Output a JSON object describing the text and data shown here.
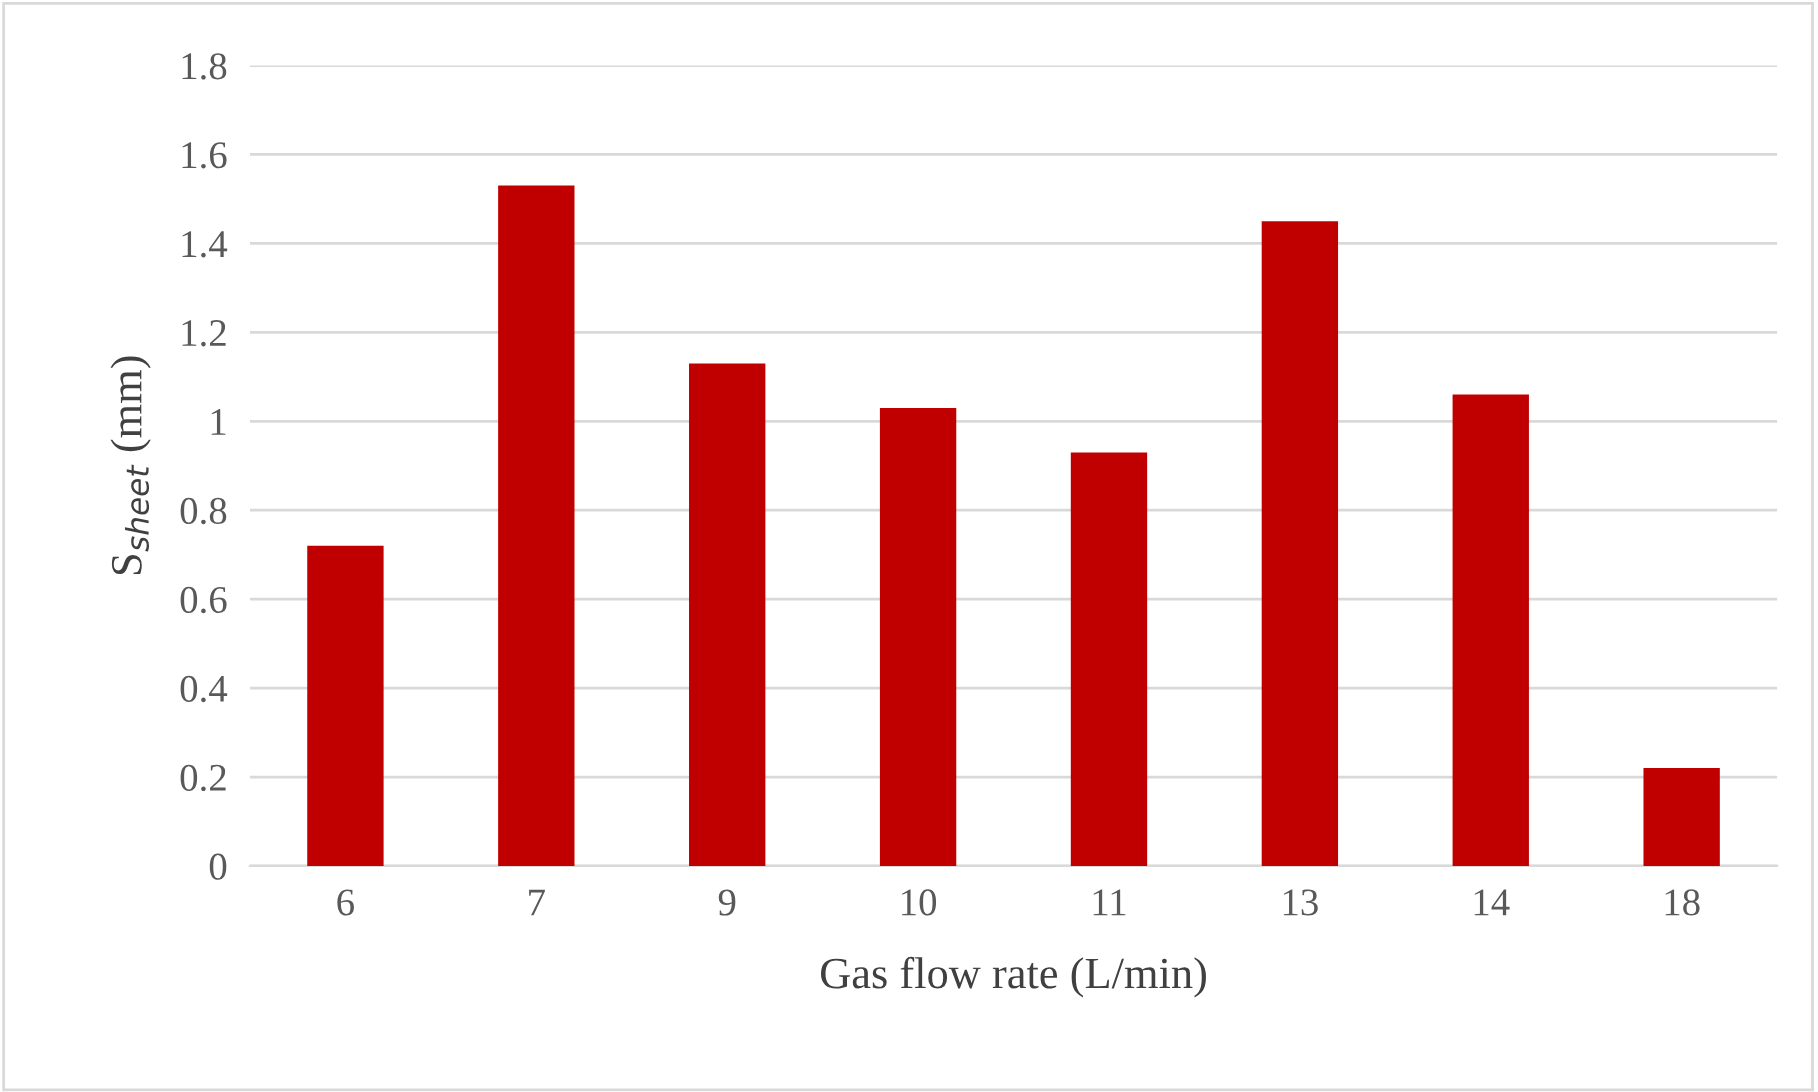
{
  "chart_data": {
    "type": "bar",
    "xlabel": "Gas flow rate (L/min)",
    "ylabel": "S$_{sheet}$ (mm)",
    "categories": [
      "6",
      "7",
      "9",
      "10",
      "11",
      "13",
      "14",
      "18"
    ],
    "values": [
      0.72,
      1.53,
      1.13,
      1.03,
      0.93,
      1.45,
      1.06,
      0.22
    ],
    "color": "#c00000",
    "ylim": [
      0,
      1.8
    ],
    "yticks": [
      0,
      0.2,
      0.4,
      0.6,
      0.8,
      1,
      1.2,
      1.4,
      1.6,
      1.8
    ],
    "grid": "y"
  }
}
